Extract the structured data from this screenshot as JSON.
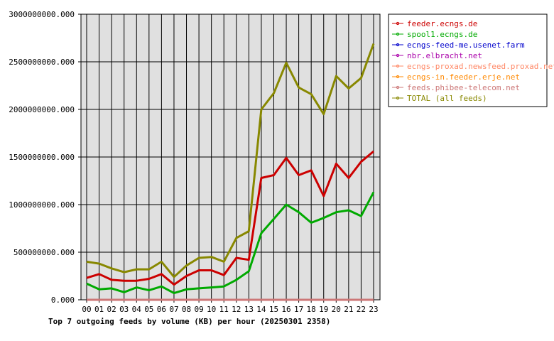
{
  "chart_data": {
    "type": "line",
    "title": "Top 7 outgoing feeds by volume (KB) per hour (20250301 2358)",
    "categories": [
      "00",
      "01",
      "02",
      "03",
      "04",
      "05",
      "06",
      "07",
      "08",
      "09",
      "10",
      "11",
      "12",
      "13",
      "14",
      "15",
      "16",
      "17",
      "18",
      "19",
      "20",
      "21",
      "22",
      "23"
    ],
    "ylim": [
      0,
      3000000000
    ],
    "y_ticks": [
      {
        "value": 0,
        "label": "0.000"
      },
      {
        "value": 500000000,
        "label": "500000000.000"
      },
      {
        "value": 1000000000,
        "label": "1000000000.000"
      },
      {
        "value": 1500000000,
        "label": "1500000000.000"
      },
      {
        "value": 2000000000,
        "label": "2000000000.000"
      },
      {
        "value": 2500000000,
        "label": "2500000000.000"
      },
      {
        "value": 3000000000,
        "label": "3000000000.000"
      }
    ],
    "grid": true,
    "legend_position": "right",
    "series": [
      {
        "name": "feeder.ecngs.de",
        "color": "#cc0000",
        "width": 3,
        "values": [
          230000000,
          270000000,
          210000000,
          200000000,
          200000000,
          220000000,
          270000000,
          160000000,
          250000000,
          310000000,
          310000000,
          260000000,
          440000000,
          420000000,
          1280000000,
          1310000000,
          1490000000,
          1310000000,
          1360000000,
          1090000000,
          1430000000,
          1280000000,
          1450000000,
          1560000000
        ]
      },
      {
        "name": "spool1.ecngs.de",
        "color": "#00aa00",
        "width": 3,
        "values": [
          170000000,
          110000000,
          120000000,
          80000000,
          130000000,
          100000000,
          140000000,
          70000000,
          110000000,
          120000000,
          130000000,
          140000000,
          210000000,
          300000000,
          700000000,
          850000000,
          1000000000,
          920000000,
          810000000,
          860000000,
          920000000,
          940000000,
          880000000,
          1130000000
        ]
      },
      {
        "name": "ecngs-feed-me.usenet.farm",
        "color": "#0000cc",
        "width": 1,
        "values": [
          0,
          0,
          0,
          0,
          0,
          0,
          0,
          0,
          0,
          0,
          0,
          0,
          0,
          0,
          0,
          0,
          0,
          0,
          0,
          0,
          0,
          0,
          0,
          0
        ]
      },
      {
        "name": "nbr.elbracht.net",
        "color": "#aa00aa",
        "width": 1,
        "values": [
          0,
          0,
          0,
          0,
          0,
          0,
          0,
          0,
          0,
          0,
          0,
          0,
          0,
          0,
          0,
          0,
          0,
          0,
          0,
          0,
          0,
          0,
          0,
          0
        ]
      },
      {
        "name": "ecngs-proxad.newsfeed.proxad.net",
        "color": "#ff8866",
        "width": 1,
        "values": [
          0,
          0,
          0,
          0,
          0,
          0,
          0,
          0,
          0,
          0,
          0,
          0,
          0,
          0,
          0,
          0,
          0,
          0,
          0,
          0,
          0,
          0,
          0,
          0
        ]
      },
      {
        "name": "ecngs-in.feeder.erje.net",
        "color": "#ff8800",
        "width": 1,
        "values": [
          0,
          0,
          0,
          0,
          0,
          0,
          0,
          0,
          0,
          0,
          0,
          0,
          0,
          0,
          0,
          0,
          0,
          0,
          0,
          0,
          0,
          0,
          0,
          0
        ]
      },
      {
        "name": "feeds.phibee-telecom.net",
        "color": "#cc7777",
        "width": 3,
        "values": [
          0,
          0,
          0,
          0,
          0,
          0,
          0,
          0,
          0,
          0,
          0,
          0,
          0,
          0,
          0,
          0,
          0,
          0,
          0,
          0,
          0,
          0,
          0,
          0
        ]
      },
      {
        "name": "TOTAL (all feeds)",
        "color": "#888800",
        "width": 3,
        "values": [
          400000000,
          380000000,
          330000000,
          290000000,
          320000000,
          320000000,
          400000000,
          240000000,
          360000000,
          440000000,
          450000000,
          400000000,
          650000000,
          720000000,
          2000000000,
          2170000000,
          2490000000,
          2230000000,
          2160000000,
          1950000000,
          2350000000,
          2220000000,
          2330000000,
          2690000000
        ]
      }
    ]
  }
}
